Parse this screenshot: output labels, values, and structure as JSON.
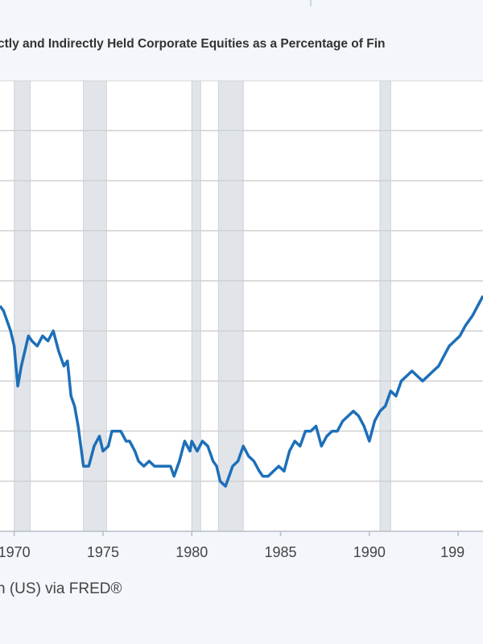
{
  "page": {
    "title": "ctly and Indirectly Held Corporate Equities as a Percentage of Fin",
    "source": "n (US) via FRED®"
  },
  "colors": {
    "background": "#f3f6fb",
    "plot_background": "#ffffff",
    "recession_shading": "#e1e5ea",
    "grid": "#d0d0d0",
    "line": "#1d6fb8",
    "text": "#333333"
  },
  "chart_data": {
    "type": "line",
    "title": "ctly and Indirectly Held Corporate Equities as a Percentage of Fin",
    "xlabel": "",
    "ylabel": "",
    "x_ticks": [
      "1970",
      "1975",
      "1980",
      "1985",
      "1990",
      "199"
    ],
    "xlim": [
      1969.2,
      1996.4
    ],
    "ylim": [
      0,
      9
    ],
    "grid": true,
    "recessions": [
      [
        1970.0,
        1970.9
      ],
      [
        1973.9,
        1975.2
      ],
      [
        1980.0,
        1980.5
      ],
      [
        1981.5,
        1982.9
      ],
      [
        1990.6,
        1991.2
      ]
    ],
    "series": [
      {
        "name": "",
        "x": [
          1969.2,
          1969.4,
          1969.6,
          1969.8,
          1970.0,
          1970.2,
          1970.4,
          1970.6,
          1970.8,
          1971.0,
          1971.3,
          1971.6,
          1971.9,
          1972.2,
          1972.5,
          1972.8,
          1973.0,
          1973.2,
          1973.4,
          1973.6,
          1973.9,
          1974.2,
          1974.5,
          1974.8,
          1975.0,
          1975.3,
          1975.5,
          1975.8,
          1976.0,
          1976.3,
          1976.5,
          1976.8,
          1977.0,
          1977.3,
          1977.6,
          1977.9,
          1978.2,
          1978.5,
          1978.8,
          1979.0,
          1979.3,
          1979.6,
          1979.9,
          1980.0,
          1980.3,
          1980.6,
          1980.9,
          1981.2,
          1981.4,
          1981.6,
          1981.9,
          1982.1,
          1982.3,
          1982.6,
          1982.9,
          1983.2,
          1983.5,
          1983.8,
          1984.0,
          1984.3,
          1984.6,
          1984.9,
          1985.2,
          1985.5,
          1985.8,
          1986.1,
          1986.4,
          1986.7,
          1987.0,
          1987.3,
          1987.6,
          1987.9,
          1988.2,
          1988.5,
          1988.8,
          1989.1,
          1989.4,
          1989.7,
          1990.0,
          1990.3,
          1990.6,
          1990.9,
          1991.2,
          1991.5,
          1991.8,
          1992.1,
          1992.4,
          1992.7,
          1993.0,
          1993.3,
          1993.6,
          1993.9,
          1994.2,
          1994.5,
          1994.8,
          1995.1,
          1995.4,
          1995.8,
          1996.1,
          1996.4
        ],
        "values": [
          4.5,
          4.4,
          4.2,
          4.0,
          3.7,
          2.9,
          3.3,
          3.6,
          3.9,
          3.8,
          3.7,
          3.9,
          3.8,
          4.0,
          3.6,
          3.3,
          3.4,
          2.7,
          2.5,
          2.1,
          1.3,
          1.3,
          1.7,
          1.9,
          1.6,
          1.7,
          2.0,
          2.0,
          2.0,
          1.8,
          1.8,
          1.6,
          1.4,
          1.3,
          1.4,
          1.3,
          1.3,
          1.3,
          1.3,
          1.1,
          1.4,
          1.8,
          1.6,
          1.8,
          1.6,
          1.8,
          1.7,
          1.4,
          1.3,
          1.0,
          0.9,
          1.1,
          1.3,
          1.4,
          1.7,
          1.5,
          1.4,
          1.2,
          1.1,
          1.1,
          1.2,
          1.3,
          1.2,
          1.6,
          1.8,
          1.7,
          2.0,
          2.0,
          2.1,
          1.7,
          1.9,
          2.0,
          2.0,
          2.2,
          2.3,
          2.4,
          2.3,
          2.1,
          1.8,
          2.2,
          2.4,
          2.5,
          2.8,
          2.7,
          3.0,
          3.1,
          3.2,
          3.1,
          3.0,
          3.1,
          3.2,
          3.3,
          3.5,
          3.7,
          3.8,
          3.9,
          4.1,
          4.3,
          4.5,
          4.7
        ]
      }
    ]
  }
}
